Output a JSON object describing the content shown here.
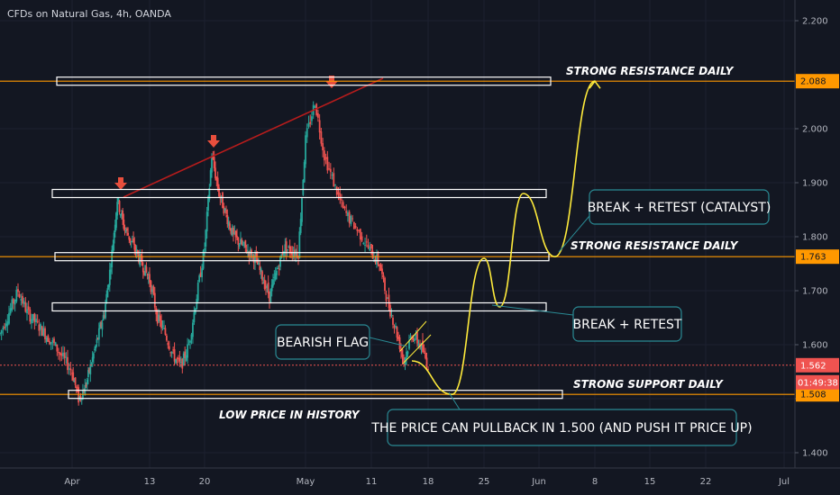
{
  "header": {
    "title": "CFDs on Natural Gas, 4h, OANDA"
  },
  "colors": {
    "background": "#131722",
    "up": "#26a69a",
    "down": "#ef5350",
    "support_line": "#ff9800",
    "trend_line": "#b71c1c",
    "path": "#ffeb3b",
    "callout_border": "#2a8a94",
    "current_price": "#ef5350"
  },
  "chart_data": {
    "type": "candlestick",
    "symbol": "CFDs on Natural Gas",
    "interval": "4h",
    "ylim": [
      1.36,
      2.24
    ],
    "y_ticks": [
      1.4,
      1.5,
      1.6,
      1.7,
      1.8,
      1.9,
      2.0,
      2.2
    ],
    "y_tick_labels": [
      "1.400",
      "",
      "1.600",
      "1.700",
      "1.800",
      "1.900",
      "2.000",
      "2.200"
    ],
    "x_labels": [
      "Apr",
      "13",
      "20",
      "May",
      "11",
      "18",
      "25",
      "Jun",
      "8",
      "15",
      "22",
      "Jul"
    ],
    "x_dates": [
      "2020-04-01",
      "2020-04-13",
      "2020-04-20",
      "2020-05-04",
      "2020-05-11",
      "2020-05-18",
      "2020-05-25",
      "2020-06-01",
      "2020-06-08",
      "2020-06-15",
      "2020-06-22",
      "2020-07-01"
    ],
    "price_path": [
      [
        "2020-03-24",
        1.62
      ],
      [
        "2020-03-26",
        1.7
      ],
      [
        "2020-03-27",
        1.66
      ],
      [
        "2020-03-30",
        1.6
      ],
      [
        "2020-04-01",
        1.55
      ],
      [
        "2020-04-02",
        1.5
      ],
      [
        "2020-04-03",
        1.52
      ],
      [
        "2020-04-06",
        1.66
      ],
      [
        "2020-04-07",
        1.75
      ],
      [
        "2020-04-08",
        1.87
      ],
      [
        "2020-04-09",
        1.82
      ],
      [
        "2020-04-13",
        1.72
      ],
      [
        "2020-04-14",
        1.65
      ],
      [
        "2020-04-15",
        1.62
      ],
      [
        "2020-04-16",
        1.58
      ],
      [
        "2020-04-17",
        1.56
      ],
      [
        "2020-04-18",
        1.6
      ],
      [
        "2020-04-20",
        1.78
      ],
      [
        "2020-04-21",
        1.95
      ],
      [
        "2020-04-22",
        1.88
      ],
      [
        "2020-04-24",
        1.8
      ],
      [
        "2020-04-27",
        1.76
      ],
      [
        "2020-04-29",
        1.69
      ],
      [
        "2020-05-01",
        1.78
      ],
      [
        "2020-05-03",
        1.77
      ],
      [
        "2020-05-04",
        1.98
      ],
      [
        "2020-05-05",
        2.05
      ],
      [
        "2020-05-06",
        1.95
      ],
      [
        "2020-05-07",
        1.9
      ],
      [
        "2020-05-08",
        1.85
      ],
      [
        "2020-05-10",
        1.8
      ],
      [
        "2020-05-11",
        1.77
      ],
      [
        "2020-05-12",
        1.75
      ],
      [
        "2020-05-13",
        1.68
      ],
      [
        "2020-05-14",
        1.63
      ],
      [
        "2020-05-15",
        1.57
      ],
      [
        "2020-05-16",
        1.62
      ],
      [
        "2020-05-17",
        1.6
      ],
      [
        "2020-05-18",
        1.562
      ]
    ],
    "levels": [
      {
        "price": 2.088,
        "label": "2.088",
        "annotation": "STRONG RESISTANCE DAILY",
        "type": "resistance"
      },
      {
        "price": 1.88,
        "annotation": "",
        "type": "zone"
      },
      {
        "price": 1.763,
        "label": "1.763",
        "annotation": "STRONG RESISTANCE DAILY",
        "type": "resistance"
      },
      {
        "price": 1.67,
        "annotation": "",
        "type": "zone"
      },
      {
        "price": 1.508,
        "label": "1.508",
        "annotation": "STRONG SUPPORT DAILY",
        "type": "support"
      }
    ],
    "current_price": {
      "price": 1.562,
      "label": "1.562",
      "countdown": "01:49:38"
    },
    "annotations": {
      "low_price": "LOW PRICE IN HISTORY",
      "bearish_flag": "BEARISH FLAG",
      "break_retest_catalyst": "BREAK + RETEST (CATALYST)",
      "break_retest": "BREAK + RETEST",
      "pullback": "THE PRICE CAN PULLBACK IN 1.500 (AND PUSH IT PRICE UP)"
    },
    "projection_path": [
      [
        "2020-05-16",
        1.57
      ],
      [
        "2020-05-21",
        1.508
      ],
      [
        "2020-05-25",
        1.76
      ],
      [
        "2020-05-27",
        1.67
      ],
      [
        "2020-05-30",
        1.88
      ],
      [
        "2020-06-03",
        1.763
      ],
      [
        "2020-06-08",
        2.088
      ]
    ]
  }
}
